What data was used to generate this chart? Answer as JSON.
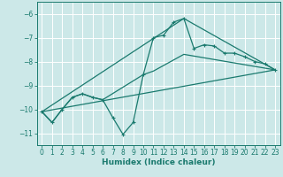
{
  "xlabel": "Humidex (Indice chaleur)",
  "background_color": "#cce8e8",
  "grid_color": "#ffffff",
  "line_color": "#1a7a6e",
  "xlim": [
    -0.5,
    23.5
  ],
  "ylim": [
    -11.5,
    -5.5
  ],
  "xticks": [
    0,
    1,
    2,
    3,
    4,
    5,
    6,
    7,
    8,
    9,
    10,
    11,
    12,
    13,
    14,
    15,
    16,
    17,
    18,
    19,
    20,
    21,
    22,
    23
  ],
  "yticks": [
    -11,
    -10,
    -9,
    -8,
    -7,
    -6
  ],
  "series1_x": [
    0,
    1,
    2,
    3,
    4,
    5,
    6,
    7,
    8,
    9,
    10,
    11,
    12,
    13,
    14,
    15,
    16,
    17,
    18,
    19,
    20,
    21,
    22,
    23
  ],
  "series1_y": [
    -10.1,
    -10.55,
    -10.0,
    -9.5,
    -9.35,
    -9.5,
    -9.6,
    -10.35,
    -11.05,
    -10.55,
    -8.55,
    -7.0,
    -6.9,
    -6.35,
    -6.2,
    -7.45,
    -7.3,
    -7.35,
    -7.65,
    -7.65,
    -7.8,
    -8.0,
    -8.1,
    -8.35
  ],
  "series2_x": [
    0,
    1,
    2,
    3,
    4,
    5,
    6,
    10,
    11,
    14,
    23
  ],
  "series2_y": [
    -10.1,
    -10.55,
    -10.0,
    -9.5,
    -9.35,
    -9.5,
    -9.6,
    -8.55,
    -8.4,
    -7.7,
    -8.35
  ],
  "series3_x": [
    0,
    23
  ],
  "series3_y": [
    -10.1,
    -8.35
  ],
  "series4_x": [
    0,
    14,
    23
  ],
  "series4_y": [
    -10.1,
    -6.2,
    -8.35
  ]
}
